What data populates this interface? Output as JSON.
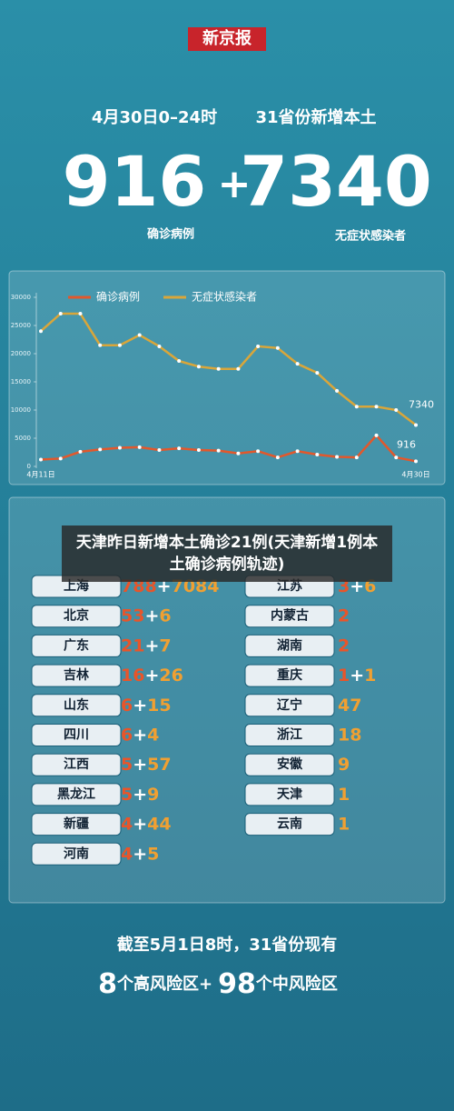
{
  "logo": "新京报",
  "header": {
    "date": "4月30日0–24时",
    "scope": "31省份新增本土"
  },
  "summary": {
    "confirmed": 916,
    "plus": "+",
    "asymptomatic": 7340,
    "confirmed_label": "确诊病例",
    "asymptomatic_label": "无症状感染者"
  },
  "chart_data": {
    "type": "line",
    "categories": [
      "4月11日",
      null,
      null,
      null,
      null,
      null,
      null,
      null,
      null,
      null,
      null,
      null,
      null,
      null,
      null,
      null,
      null,
      null,
      null,
      "4月30日"
    ],
    "series": [
      {
        "name": "确诊病例",
        "color": "#e2582c",
        "values": [
          1200,
          1400,
          2600,
          3000,
          3300,
          3400,
          2900,
          3200,
          2900,
          2800,
          2300,
          2700,
          1600,
          2700,
          2100,
          1700,
          1600,
          5500,
          1600,
          916
        ]
      },
      {
        "name": "无症状感染者",
        "color": "#d9a63a",
        "values": [
          24000,
          27100,
          27100,
          21500,
          21500,
          23300,
          21300,
          18700,
          17700,
          17300,
          17300,
          21300,
          21000,
          18200,
          16600,
          13400,
          10600,
          10600,
          10000,
          7340
        ]
      }
    ],
    "ylim": [
      0,
      30000
    ],
    "yticks": [
      0,
      5000,
      10000,
      15000,
      20000,
      25000,
      30000
    ],
    "grid": false,
    "legend": "top"
  },
  "banner": "天津昨日新增本土确诊21例(天津新增1例本土确诊病例轨迹)",
  "provinces": {
    "plus": "+",
    "left": [
      {
        "name": "上海",
        "confirmed": 788,
        "asymptomatic": 7084
      },
      {
        "name": "北京",
        "confirmed": 53,
        "asymptomatic": 6
      },
      {
        "name": "广东",
        "confirmed": 21,
        "asymptomatic": 7
      },
      {
        "name": "吉林",
        "confirmed": 16,
        "asymptomatic": 26
      },
      {
        "name": "山东",
        "confirmed": 6,
        "asymptomatic": 15
      },
      {
        "name": "四川",
        "confirmed": 6,
        "asymptomatic": 4
      },
      {
        "name": "江西",
        "confirmed": 5,
        "asymptomatic": 57
      },
      {
        "name": "黑龙江",
        "confirmed": 5,
        "asymptomatic": 9
      },
      {
        "name": "新疆",
        "confirmed": 4,
        "asymptomatic": 44
      },
      {
        "name": "河南",
        "confirmed": 4,
        "asymptomatic": 5
      }
    ],
    "right": [
      {
        "name": "江苏",
        "confirmed": 3,
        "asymptomatic": 6
      },
      {
        "name": "内蒙古",
        "confirmed": 2,
        "asymptomatic": null
      },
      {
        "name": "湖南",
        "confirmed": 2,
        "asymptomatic": null
      },
      {
        "name": "重庆",
        "confirmed": 1,
        "asymptomatic": 1
      },
      {
        "name": "辽宁",
        "confirmed": null,
        "asymptomatic": 47
      },
      {
        "name": "浙江",
        "confirmed": null,
        "asymptomatic": 18
      },
      {
        "name": "安徽",
        "confirmed": null,
        "asymptomatic": 9
      },
      {
        "name": "天津",
        "confirmed": null,
        "asymptomatic": 1
      },
      {
        "name": "云南",
        "confirmed": null,
        "asymptomatic": 1
      }
    ]
  },
  "footer": {
    "line1": "截至5月1日8时，31省份现有",
    "high_count": 8,
    "high_label": "个高风险区+",
    "mid_count": 98,
    "mid_label": "个中风险区"
  }
}
